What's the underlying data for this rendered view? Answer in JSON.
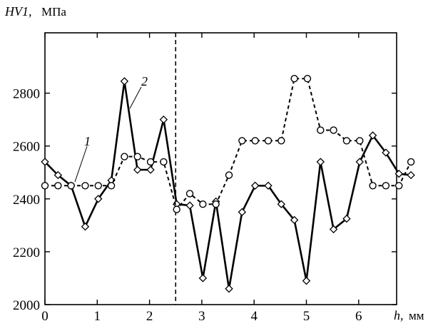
{
  "chart_data": {
    "type": "line",
    "ylabel_var": "HV1,",
    "ylabel_unit": "МПа",
    "xlabel_var": "h,",
    "xlabel_unit": "мм",
    "xlim": [
      0,
      7
    ],
    "ylim": [
      2000,
      2950
    ],
    "xticks": [
      "0",
      "1",
      "2",
      "3",
      "4",
      "5",
      "6"
    ],
    "yticks": [
      "2000",
      "2200",
      "2400",
      "2600",
      "2800"
    ],
    "xtick_values": [
      0,
      1,
      2,
      3,
      4,
      5,
      6
    ],
    "ytick_values": [
      2000,
      2200,
      2400,
      2600,
      2800
    ],
    "vline_x": 2.5,
    "grid": false,
    "series": [
      {
        "name": "1",
        "style": "solid",
        "marker": "diamond",
        "color": "#000000",
        "points": [
          [
            0.0,
            2540
          ],
          [
            0.25,
            2490
          ],
          [
            0.5,
            2450
          ],
          [
            0.77,
            2295
          ],
          [
            1.02,
            2400
          ],
          [
            1.27,
            2470
          ],
          [
            1.52,
            2845
          ],
          [
            1.77,
            2510
          ],
          [
            2.02,
            2510
          ],
          [
            2.27,
            2700
          ],
          [
            2.52,
            2380
          ],
          [
            2.77,
            2375
          ],
          [
            3.02,
            2100
          ],
          [
            3.27,
            2390
          ],
          [
            3.52,
            2060
          ],
          [
            3.77,
            2350
          ],
          [
            4.02,
            2450
          ],
          [
            4.27,
            2450
          ],
          [
            4.52,
            2380
          ],
          [
            4.77,
            2320
          ],
          [
            5.0,
            2090
          ],
          [
            5.27,
            2540
          ],
          [
            5.52,
            2285
          ],
          [
            5.77,
            2325
          ],
          [
            6.02,
            2540
          ],
          [
            6.27,
            2640
          ],
          [
            6.52,
            2575
          ],
          [
            6.77,
            2495
          ],
          [
            7.0,
            2490
          ]
        ]
      },
      {
        "name": "2",
        "style": "dashed",
        "marker": "circle",
        "color": "#000000",
        "points": [
          [
            0.0,
            2450
          ],
          [
            0.25,
            2450
          ],
          [
            0.5,
            2450
          ],
          [
            0.77,
            2450
          ],
          [
            1.02,
            2450
          ],
          [
            1.27,
            2450
          ],
          [
            1.52,
            2560
          ],
          [
            1.77,
            2560
          ],
          [
            2.02,
            2540
          ],
          [
            2.27,
            2540
          ],
          [
            2.52,
            2360
          ],
          [
            2.77,
            2420
          ],
          [
            3.02,
            2380
          ],
          [
            3.27,
            2380
          ],
          [
            3.52,
            2490
          ],
          [
            3.77,
            2620
          ],
          [
            4.02,
            2620
          ],
          [
            4.27,
            2620
          ],
          [
            4.52,
            2620
          ],
          [
            4.77,
            2855
          ],
          [
            5.02,
            2855
          ],
          [
            5.27,
            2660
          ],
          [
            5.52,
            2660
          ],
          [
            5.77,
            2620
          ],
          [
            6.02,
            2620
          ],
          [
            6.27,
            2450
          ],
          [
            6.52,
            2450
          ],
          [
            6.77,
            2450
          ],
          [
            7.0,
            2540
          ]
        ]
      }
    ]
  }
}
